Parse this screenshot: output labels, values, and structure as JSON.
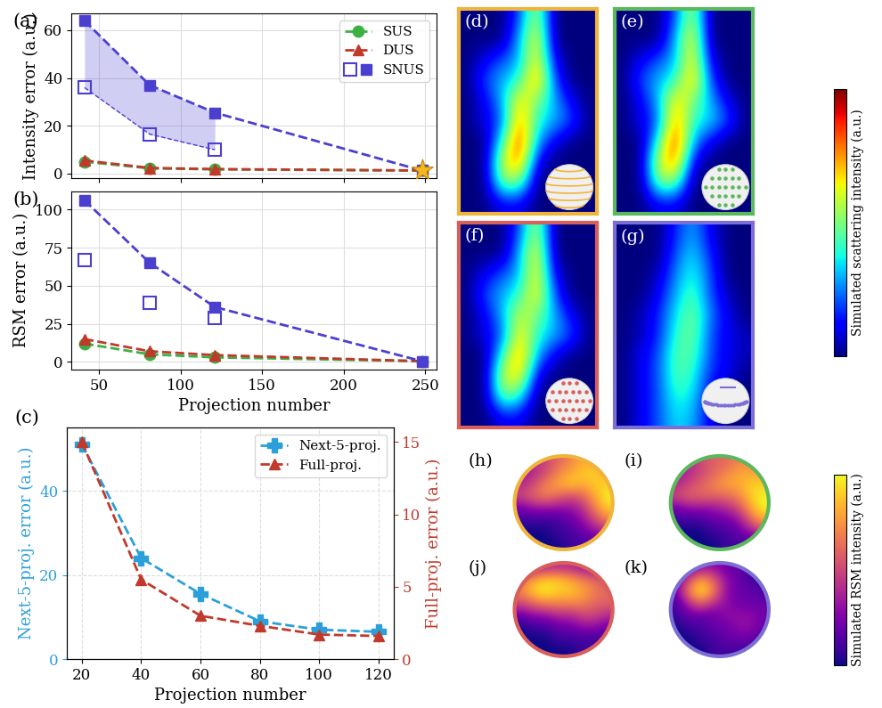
{
  "chart_data": [
    {
      "panel_label": "(a)",
      "type": "line",
      "x": [
        41,
        81,
        121,
        248
      ],
      "ylabel": "Intensity error (a.u.)",
      "xlim": [
        33,
        257
      ],
      "ylim": [
        -2,
        67
      ],
      "xticks": [
        50,
        100,
        150,
        200,
        250
      ],
      "yticks": [
        0,
        20,
        40,
        60
      ],
      "grid": true,
      "legend": "upper right",
      "tick_labels": "y",
      "series": [
        {
          "name": "SUS",
          "color": "#3cb043",
          "marker": "circle",
          "line_style": "dashed",
          "values": [
            5,
            2.2,
            1.8,
            1.3
          ]
        },
        {
          "name": "DUS",
          "color": "#c0392b",
          "marker": "triangle",
          "line_style": "dashed",
          "values": [
            5.5,
            2.4,
            1.9,
            1.3
          ]
        },
        {
          "name": "SNUS",
          "type": "band",
          "color": "#4b3fd0",
          "marker": "square",
          "line_style": "dashed",
          "values": [
            64,
            37,
            25.5,
            1.3
          ],
          "lower_values": [
            36,
            16.5,
            10,
            null
          ]
        },
        {
          "type": "scatter",
          "color": "#f5b81c",
          "marker": "star",
          "values": [
            null,
            null,
            null,
            1.3
          ]
        }
      ]
    },
    {
      "panel_label": "(b)",
      "type": "line",
      "x": [
        41,
        81,
        121,
        248
      ],
      "xlabel": "Projection number",
      "ylabel": "RSM error (a.u.)",
      "xlim": [
        33,
        257
      ],
      "ylim": [
        -5,
        112
      ],
      "xticks": [
        50,
        100,
        150,
        200,
        250
      ],
      "yticks": [
        0,
        25,
        50,
        75,
        100
      ],
      "grid": true,
      "series": [
        {
          "name": "SUS",
          "color": "#3cb043",
          "marker": "circle",
          "line_style": "dashed",
          "values": [
            12,
            5,
            3,
            0.5
          ]
        },
        {
          "name": "DUS",
          "color": "#c0392b",
          "marker": "triangle",
          "line_style": "dashed",
          "values": [
            15,
            7,
            4.5,
            0.5
          ]
        },
        {
          "name": "SNUS",
          "type": "line",
          "color": "#4b3fd0",
          "marker": "square",
          "line_style": "dashed",
          "values": [
            106,
            65,
            36,
            0.5
          ],
          "lower_values": [
            67,
            39,
            29,
            null
          ]
        }
      ]
    },
    {
      "panel_label": "(c)",
      "type": "line",
      "x": [
        20,
        40,
        60,
        80,
        100,
        120
      ],
      "xlabel": "Projection number",
      "ylabel": "Next-5-proj. error (a.u.)",
      "y2label": "Full-proj. error (a.u.)",
      "xlim": [
        15,
        125
      ],
      "ylim": [
        0,
        55
      ],
      "y2lim": [
        0,
        16
      ],
      "xticks": [
        20,
        40,
        60,
        80,
        100,
        120
      ],
      "yticks": [
        0,
        20,
        40
      ],
      "y2ticks": [
        0,
        5,
        10,
        15
      ],
      "grid": true,
      "legend": "upper right",
      "series": [
        {
          "name": "Next-5-proj.",
          "color": "#2b9fd9",
          "marker": "plus",
          "line_style": "dashed",
          "values": [
            51,
            24,
            15.5,
            9,
            7,
            6.5
          ]
        },
        {
          "name": "Full-proj.",
          "axis": "y2",
          "color": "#c0392b",
          "marker": "triangle",
          "line_style": "dashed",
          "values": [
            15,
            5.5,
            3,
            2.3,
            1.7,
            1.6
          ]
        }
      ]
    },
    {
      "panel_label": "(d)",
      "type": "heatmap",
      "color": "jet",
      "zlim": [
        0,
        1
      ],
      "tick_labels": false,
      "cells": [
        [
          0,
          0,
          0,
          0.2,
          0.6,
          0,
          0,
          0
        ],
        [
          0,
          0,
          0,
          0.3,
          0.7,
          0,
          0,
          0
        ],
        [
          0,
          0.1,
          0.2,
          0.3,
          0.7,
          0.1,
          0,
          0
        ],
        [
          0,
          0.2,
          0.3,
          0.4,
          0.8,
          0.2,
          0,
          0
        ],
        [
          0,
          0.1,
          0.3,
          0.7,
          0.5,
          0.3,
          0.1,
          0
        ],
        [
          0,
          0.1,
          0.2,
          0.8,
          0.4,
          0.3,
          0.2,
          0
        ],
        [
          0,
          0,
          0.4,
          0.9,
          0.3,
          0.1,
          0,
          0
        ],
        [
          0,
          0,
          0.6,
          0.8,
          0.1,
          0,
          0,
          0
        ],
        [
          0,
          0,
          0.5,
          0.5,
          0,
          0,
          0,
          0
        ],
        [
          0,
          0,
          0.1,
          0.1,
          0,
          0,
          0,
          0
        ]
      ]
    },
    {
      "panel_label": "(e)",
      "type": "heatmap",
      "color": "jet",
      "zlim": [
        0,
        1
      ],
      "tick_labels": false,
      "cells": [
        [
          0,
          0,
          0,
          0.2,
          0.6,
          0,
          0,
          0
        ],
        [
          0,
          0,
          0,
          0.3,
          0.7,
          0,
          0,
          0
        ],
        [
          0,
          0.1,
          0.2,
          0.3,
          0.7,
          0.1,
          0,
          0
        ],
        [
          0,
          0.2,
          0.3,
          0.4,
          0.75,
          0.2,
          0,
          0
        ],
        [
          0,
          0.1,
          0.3,
          0.7,
          0.5,
          0.3,
          0.1,
          0
        ],
        [
          0,
          0.1,
          0.2,
          0.8,
          0.4,
          0.35,
          0.2,
          0
        ],
        [
          0,
          0,
          0.4,
          0.9,
          0.3,
          0.1,
          0,
          0
        ],
        [
          0,
          0,
          0.6,
          0.8,
          0.1,
          0,
          0,
          0
        ],
        [
          0,
          0,
          0.5,
          0.5,
          0,
          0,
          0,
          0
        ],
        [
          0,
          0,
          0.1,
          0.1,
          0,
          0,
          0,
          0
        ]
      ]
    },
    {
      "panel_label": "(f)",
      "type": "heatmap",
      "color": "jet",
      "zlim": [
        0,
        1
      ],
      "tick_labels": false,
      "cells": [
        [
          0,
          0,
          0,
          0.2,
          0.6,
          0,
          0,
          0
        ],
        [
          0,
          0,
          0,
          0.3,
          0.7,
          0,
          0,
          0
        ],
        [
          0,
          0.1,
          0.2,
          0.3,
          0.7,
          0.1,
          0,
          0
        ],
        [
          0,
          0.2,
          0.3,
          0.4,
          0.7,
          0.2,
          0,
          0
        ],
        [
          0,
          0.1,
          0.3,
          0.6,
          0.5,
          0.3,
          0.1,
          0
        ],
        [
          0,
          0.1,
          0.2,
          0.7,
          0.4,
          0.3,
          0.2,
          0
        ],
        [
          0,
          0,
          0.4,
          0.8,
          0.3,
          0.1,
          0,
          0
        ],
        [
          0,
          0,
          0.6,
          0.7,
          0.1,
          0,
          0,
          0
        ],
        [
          0,
          0,
          0.5,
          0.4,
          0,
          0,
          0,
          0
        ],
        [
          0,
          0,
          0.1,
          0.1,
          0,
          0,
          0,
          0
        ]
      ]
    },
    {
      "panel_label": "(g)",
      "type": "heatmap",
      "color": "jet",
      "zlim": [
        0,
        1
      ],
      "tick_labels": false,
      "cells": [
        [
          0,
          0,
          0,
          0.15,
          0.3,
          0.1,
          0,
          0
        ],
        [
          0,
          0,
          0,
          0.2,
          0.35,
          0.15,
          0,
          0
        ],
        [
          0,
          0,
          0.05,
          0.25,
          0.4,
          0.2,
          0,
          0
        ],
        [
          0,
          0,
          0.1,
          0.3,
          0.45,
          0.2,
          0.05,
          0
        ],
        [
          0,
          0.05,
          0.15,
          0.35,
          0.5,
          0.25,
          0.1,
          0
        ],
        [
          0,
          0.05,
          0.15,
          0.4,
          0.5,
          0.2,
          0.1,
          0.05
        ],
        [
          0,
          0.1,
          0.2,
          0.45,
          0.45,
          0.2,
          0.1,
          0.05
        ],
        [
          0,
          0.1,
          0.2,
          0.45,
          0.4,
          0.15,
          0.1,
          0
        ],
        [
          0,
          0.1,
          0.2,
          0.4,
          0.35,
          0.1,
          0.05,
          0
        ],
        [
          0,
          0.1,
          0.2,
          0.35,
          0.3,
          0.1,
          0,
          0
        ]
      ]
    },
    {
      "type": "colorbar",
      "label": "Simulated scattering intensity (a.u.)",
      "color": "jet",
      "zlim": [
        0,
        1
      ],
      "tick_labels": false
    },
    {
      "panel_label": "(h)",
      "type": "sphere",
      "color": "plasma",
      "zlim": [
        0,
        1
      ],
      "tick_labels": false,
      "cells": [
        [
          0.3,
          0.4,
          0.5,
          0.6,
          0.7,
          0.8,
          0.8,
          0.7
        ],
        [
          0.3,
          0.4,
          0.5,
          0.7,
          0.8,
          0.9,
          0.9,
          0.8
        ],
        [
          0.4,
          0.5,
          0.7,
          0.8,
          0.9,
          0.8,
          0.9,
          0.9
        ],
        [
          0.5,
          0.6,
          0.7,
          0.6,
          0.5,
          0.6,
          0.8,
          1.0
        ],
        [
          0.2,
          0.3,
          0.3,
          0.3,
          0.3,
          0.4,
          0.7,
          0.9
        ],
        [
          0.1,
          0.1,
          0.1,
          0.1,
          0.2,
          0.3,
          0.5,
          0.7
        ],
        [
          0.0,
          0.0,
          0.0,
          0.1,
          0.1,
          0.2,
          0.3,
          0.4
        ],
        [
          0.0,
          0.0,
          0.0,
          0.0,
          0.1,
          0.1,
          0.1,
          0.2
        ]
      ]
    },
    {
      "panel_label": "(i)",
      "type": "sphere",
      "color": "plasma",
      "zlim": [
        0,
        1
      ],
      "tick_labels": false,
      "cells": [
        [
          0.3,
          0.4,
          0.5,
          0.6,
          0.6,
          0.7,
          0.7,
          0.6
        ],
        [
          0.3,
          0.4,
          0.5,
          0.6,
          0.7,
          0.8,
          0.8,
          0.8
        ],
        [
          0.4,
          0.5,
          0.6,
          0.7,
          0.8,
          0.8,
          0.9,
          0.9
        ],
        [
          0.5,
          0.6,
          0.6,
          0.6,
          0.6,
          0.7,
          0.9,
          1.0
        ],
        [
          0.2,
          0.3,
          0.3,
          0.3,
          0.4,
          0.5,
          0.8,
          1.0
        ],
        [
          0.1,
          0.1,
          0.1,
          0.2,
          0.2,
          0.3,
          0.6,
          0.8
        ],
        [
          0.0,
          0.0,
          0.0,
          0.1,
          0.1,
          0.2,
          0.3,
          0.5
        ],
        [
          0.0,
          0.0,
          0.0,
          0.0,
          0.1,
          0.1,
          0.1,
          0.2
        ]
      ]
    },
    {
      "panel_label": "(j)",
      "type": "sphere",
      "color": "plasma",
      "zlim": [
        0,
        1
      ],
      "tick_labels": false,
      "cells": [
        [
          0.2,
          0.3,
          0.4,
          0.4,
          0.4,
          0.3,
          0.3,
          0.2
        ],
        [
          0.6,
          0.8,
          0.9,
          0.9,
          0.8,
          0.7,
          0.6,
          0.5
        ],
        [
          0.7,
          0.9,
          1.0,
          0.9,
          0.9,
          0.8,
          0.7,
          0.6
        ],
        [
          0.5,
          0.6,
          0.7,
          0.7,
          0.7,
          0.7,
          0.6,
          0.6
        ],
        [
          0.2,
          0.3,
          0.3,
          0.4,
          0.4,
          0.5,
          0.5,
          0.4
        ],
        [
          0.0,
          0.1,
          0.1,
          0.2,
          0.2,
          0.3,
          0.3,
          0.2
        ],
        [
          0.0,
          0.0,
          0.0,
          0.1,
          0.1,
          0.1,
          0.1,
          0.1
        ],
        [
          0.0,
          0.0,
          0.0,
          0.0,
          0.0,
          0.1,
          0.1,
          0.0
        ]
      ]
    },
    {
      "panel_label": "(k)",
      "type": "sphere",
      "color": "plasma",
      "zlim": [
        0,
        1
      ],
      "tick_labels": false,
      "cells": [
        [
          0.1,
          0.2,
          0.3,
          0.3,
          0.2,
          0.2,
          0.1,
          0.1
        ],
        [
          0.2,
          0.5,
          0.8,
          0.6,
          0.3,
          0.2,
          0.1,
          0.1
        ],
        [
          0.2,
          0.7,
          1.0,
          0.7,
          0.3,
          0.2,
          0.2,
          0.1
        ],
        [
          0.1,
          0.4,
          0.6,
          0.4,
          0.3,
          0.2,
          0.2,
          0.2
        ],
        [
          0.1,
          0.2,
          0.2,
          0.2,
          0.3,
          0.3,
          0.3,
          0.2
        ],
        [
          0.0,
          0.1,
          0.1,
          0.2,
          0.2,
          0.3,
          0.3,
          0.2
        ],
        [
          0.0,
          0.0,
          0.1,
          0.1,
          0.2,
          0.2,
          0.2,
          0.1
        ],
        [
          0.0,
          0.0,
          0.0,
          0.1,
          0.1,
          0.1,
          0.1,
          0.1
        ]
      ]
    },
    {
      "type": "colorbar",
      "label": "Simulated RSM intensity (a.u.)",
      "color": "plasma",
      "zlim": [
        0,
        1
      ],
      "tick_labels": false
    }
  ]
}
